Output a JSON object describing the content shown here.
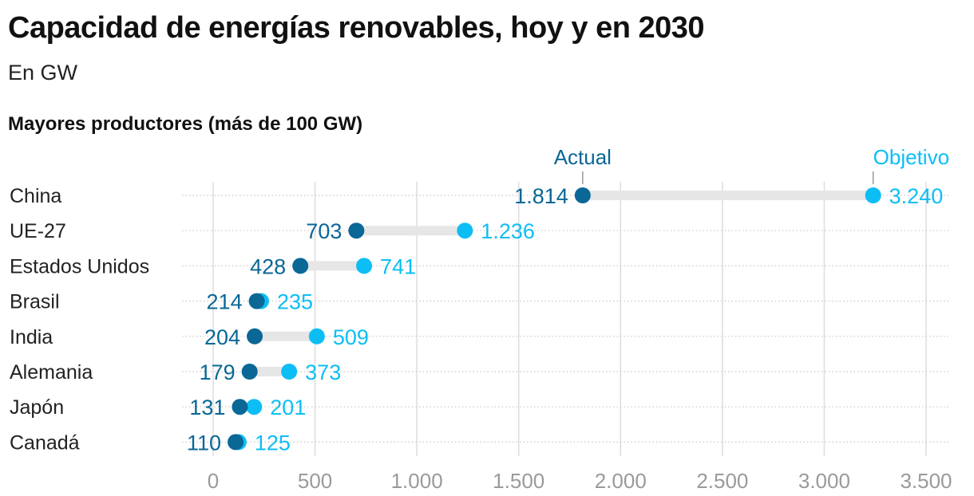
{
  "title": "Capacidad de energías renovables, hoy y en 2030",
  "subtitle": "En GW",
  "section_label": "Mayores productores (más de 100 GW)",
  "colors": {
    "actual": "#0a6796",
    "objetivo": "#0dbef5",
    "range_bar": "#e6e6e6",
    "grid": "#dddddd",
    "tick_text": "#9a9a9a",
    "category_text": "#222222"
  },
  "chart_data": {
    "type": "dumbbell",
    "categories": [
      "China",
      "UE-27",
      "Estados Unidos",
      "Brasil",
      "India",
      "Alemania",
      "Japón",
      "Canadá"
    ],
    "series": [
      {
        "name": "Actual",
        "values": [
          1814,
          703,
          428,
          214,
          204,
          179,
          131,
          110
        ],
        "labels": [
          "1.814",
          "703",
          "428",
          "214",
          "204",
          "179",
          "131",
          "110"
        ]
      },
      {
        "name": "Objetivo",
        "values": [
          3240,
          1236,
          741,
          235,
          509,
          373,
          201,
          125
        ],
        "labels": [
          "3.240",
          "1.236",
          "741",
          "235",
          "509",
          "373",
          "201",
          "125"
        ]
      }
    ],
    "xlim": [
      0,
      3500
    ],
    "xticks": [
      0,
      500,
      1000,
      1500,
      2000,
      2500,
      3000,
      3500
    ],
    "xtick_labels": [
      "0",
      "500",
      "1.000",
      "1.500",
      "2.000",
      "2.500",
      "3.000",
      "3.500"
    ],
    "grid": true,
    "legend": "annotations above top row"
  }
}
